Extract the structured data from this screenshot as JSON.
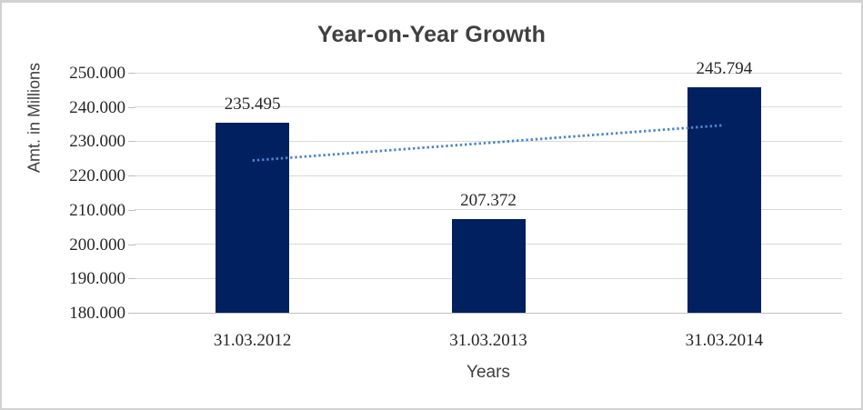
{
  "chart": {
    "title": "Year-on-Year Growth",
    "xlabel": "Years",
    "ylabel": "Amt. in Millions"
  },
  "chart_data": {
    "type": "bar",
    "title": "Year-on-Year Growth",
    "xlabel": "Years",
    "ylabel": "Amt. in Millions",
    "categories": [
      "31.03.2012",
      "31.03.2013",
      "31.03.2014"
    ],
    "values": [
      235.495,
      207.372,
      245.794
    ],
    "value_labels": [
      "235.495",
      "207.372",
      "245.794"
    ],
    "ylim": [
      180,
      250
    ],
    "ytick_step": 10,
    "ytick_labels": [
      "180.000",
      "190.000",
      "200.000",
      "210.000",
      "220.000",
      "230.000",
      "240.000",
      "250.000"
    ],
    "grid": true,
    "legend": "none",
    "bar_color": "#002060",
    "gridline_color": "#d9d9d9",
    "axis_line_color": "#bfbfbf",
    "trendline": {
      "type": "linear",
      "style": "dotted",
      "color": "#4a86c8",
      "start_value": 224.4,
      "end_value": 234.7
    }
  }
}
